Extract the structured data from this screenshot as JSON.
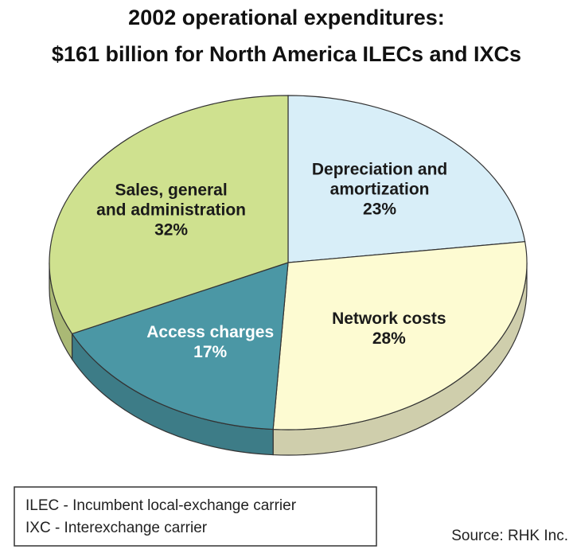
{
  "chart_data": {
    "type": "pie",
    "title": "2002 operational expenditures:",
    "subtitle": "$161 billion for North America ILECs and IXCs",
    "series": [
      {
        "name": [
          "Depreciation and",
          "amortization"
        ],
        "color": "#d8eef8",
        "values": 23,
        "value_labels": "23%"
      },
      {
        "name": [
          "Network costs"
        ],
        "color": "#fdfbd2",
        "values": 28,
        "value_labels": "28%"
      },
      {
        "name": [
          "Access charges"
        ],
        "color": "#4b97a5",
        "values": 17,
        "value_labels": "17%"
      },
      {
        "name": [
          "Sales, general",
          "and administration"
        ],
        "color": "#cfe18f",
        "values": 32,
        "value_labels": "32%"
      }
    ],
    "notes": [
      "ILEC - Incumbent local-exchange carrier",
      "IXC - Interexchange carrier"
    ],
    "source": "Source: RHK Inc."
  }
}
